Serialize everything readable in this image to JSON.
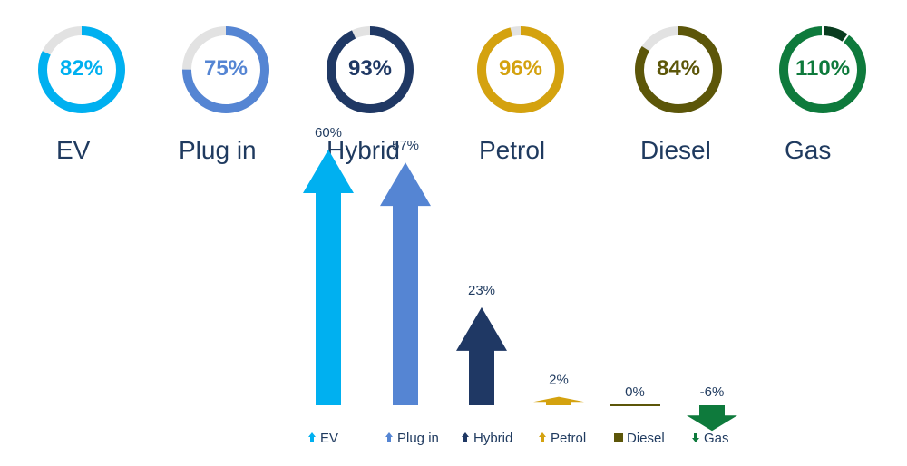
{
  "chart_data": [
    {
      "type": "donut",
      "items": [
        {
          "label": "EV",
          "value": 82,
          "value_text": "82%",
          "color": "#00b0f0"
        },
        {
          "label": "Plug in",
          "value": 75,
          "value_text": "75%",
          "color": "#5585d3"
        },
        {
          "label": "Hybrid",
          "value": 93,
          "value_text": "93%",
          "color": "#1f3864"
        },
        {
          "label": "Petrol",
          "value": 96,
          "value_text": "96%",
          "color": "#d4a20f"
        },
        {
          "label": "Diesel",
          "value": 84,
          "value_text": "84%",
          "color": "#5c5609"
        },
        {
          "label": "Gas",
          "value": 110,
          "value_text": "110%",
          "color": "#0e7a3c",
          "overflow_color": "#0a3d20"
        }
      ],
      "track_color": "#e2e2e2"
    },
    {
      "type": "bar",
      "categories": [
        "EV",
        "Plug in",
        "Hybrid",
        "Petrol",
        "Diesel",
        "Gas"
      ],
      "values": [
        60,
        57,
        23,
        2,
        0,
        -6
      ],
      "value_labels": [
        "60%",
        "57%",
        "23%",
        "2%",
        "0%",
        "-6%"
      ],
      "colors": [
        "#00b0f0",
        "#5585d3",
        "#1f3864",
        "#d4a20f",
        "#5c5609",
        "#0e7a3c"
      ],
      "legend_markers": [
        "up-arrow-icon",
        "up-arrow-icon",
        "up-arrow-icon",
        "up-arrow-icon",
        "square-icon",
        "down-arrow-icon"
      ],
      "legend_position": "bottom"
    }
  ]
}
